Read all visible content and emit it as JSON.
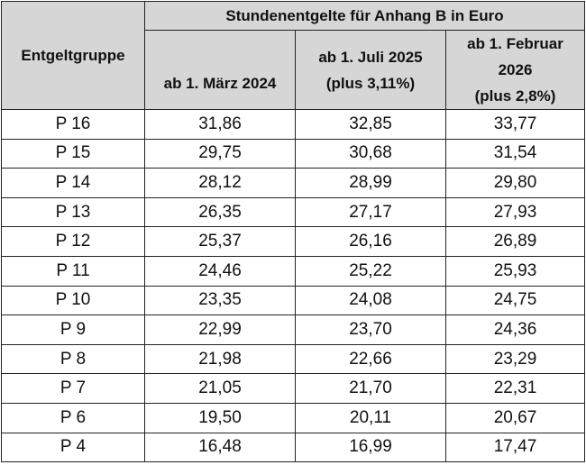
{
  "table": {
    "group_header": "Entgeltgruppe",
    "title": "Stundenentgelte für Anhang B in Euro",
    "columns": [
      [
        "ab 1. März 2024"
      ],
      [
        "ab 1. Juli 2025",
        "(plus 3,11%)"
      ],
      [
        "ab 1. Februar",
        "2026",
        "(plus 2,8%)"
      ]
    ],
    "rows": [
      [
        "P 16",
        "31,86",
        "32,85",
        "33,77"
      ],
      [
        "P 15",
        "29,75",
        "30,68",
        "31,54"
      ],
      [
        "P 14",
        "28,12",
        "28,99",
        "29,80"
      ],
      [
        "P 13",
        "26,35",
        "27,17",
        "27,93"
      ],
      [
        "P 12",
        "25,37",
        "26,16",
        "26,89"
      ],
      [
        "P 11",
        "24,46",
        "25,22",
        "25,93"
      ],
      [
        "P 10",
        "23,35",
        "24,08",
        "24,75"
      ],
      [
        "P 9",
        "22,99",
        "23,70",
        "24,36"
      ],
      [
        "P 8",
        "21,98",
        "22,66",
        "23,29"
      ],
      [
        "P 7",
        "21,05",
        "21,70",
        "22,31"
      ],
      [
        "P 6",
        "19,50",
        "20,11",
        "20,67"
      ],
      [
        "P 4",
        "16,48",
        "16,99",
        "17,47"
      ]
    ],
    "header_bg": "#d6d6d6"
  }
}
